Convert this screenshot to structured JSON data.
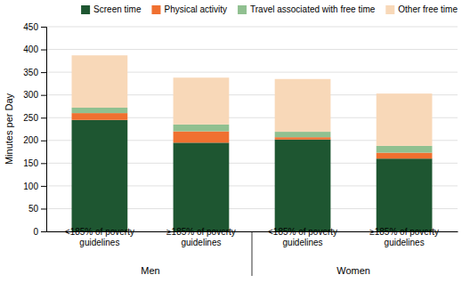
{
  "chart_data": {
    "type": "bar",
    "stacked": true,
    "categories": [
      "<185% of poverty\nguidelines",
      "≥185% of poverty\nguidelines",
      "<185% of poverty\nguidelines",
      "≥185% of poverty\nguidelines"
    ],
    "group_labels": [
      "Men",
      "Women"
    ],
    "series": [
      {
        "name": "Screen time",
        "color": "#1e5631",
        "values": [
          245,
          195,
          202,
          160
        ]
      },
      {
        "name": "Physical activity",
        "color": "#f07030",
        "values": [
          15,
          25,
          5,
          13
        ]
      },
      {
        "name": "Travel associated with free time",
        "color": "#90c090",
        "values": [
          12,
          15,
          12,
          15
        ]
      },
      {
        "name": "Other free time",
        "color": "#f8d8b8",
        "values": [
          115,
          103,
          116,
          115
        ]
      }
    ],
    "ylabel": "Minutes per Day",
    "ylim": [
      0,
      450
    ],
    "yticks": [
      0,
      50,
      100,
      150,
      200,
      250,
      300,
      350,
      400,
      450
    ],
    "grid": true,
    "legend": "top"
  }
}
